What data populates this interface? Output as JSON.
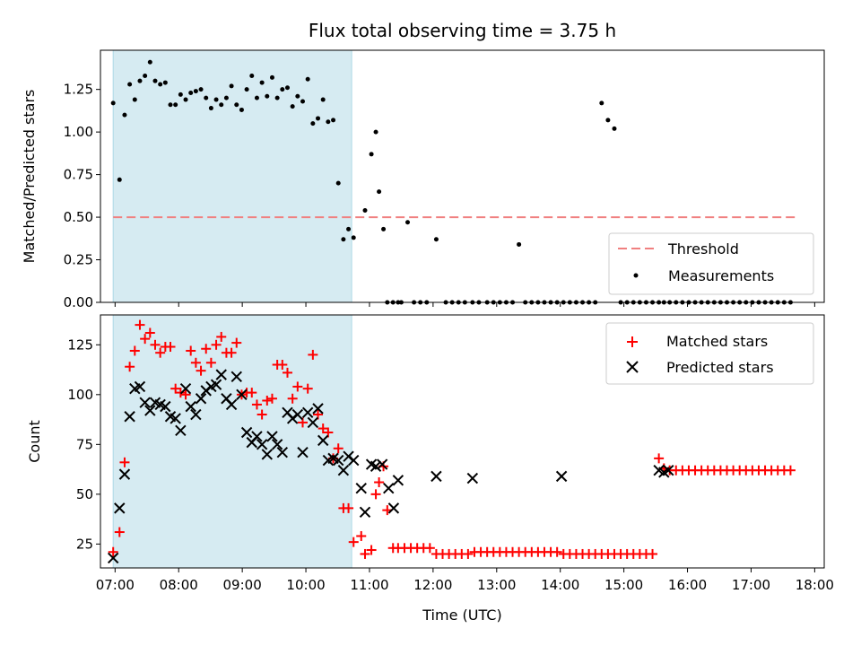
{
  "chart_data": [
    {
      "type": "scatter",
      "title": "Flux total observing time = 3.75 h",
      "ylabel": "Matched/Predicted stars",
      "xlabel": "",
      "xlim": [
        6.77,
        18.15
      ],
      "ylim": [
        0.0,
        1.48
      ],
      "yticks": [
        0.0,
        0.25,
        0.5,
        0.75,
        1.0,
        1.25
      ],
      "ytick_labels": [
        "0.00",
        "0.25",
        "0.50",
        "0.75",
        "1.00",
        "1.25"
      ],
      "shaded_span": [
        6.97,
        10.72
      ],
      "threshold": {
        "name": "Threshold",
        "value": 0.5,
        "x_range": [
          6.97,
          17.7
        ],
        "color": "#f08080"
      },
      "legend": [
        "Threshold",
        "Measurements"
      ],
      "legend_position": "lower-right",
      "series": [
        {
          "name": "Measurements",
          "color": "#000000",
          "x": [
            6.97,
            7.07,
            7.15,
            7.23,
            7.31,
            7.39,
            7.47,
            7.55,
            7.63,
            7.71,
            7.79,
            7.87,
            7.95,
            8.03,
            8.11,
            8.19,
            8.27,
            8.35,
            8.43,
            8.51,
            8.59,
            8.67,
            8.75,
            8.83,
            8.91,
            8.99,
            9.07,
            9.15,
            9.23,
            9.31,
            9.39,
            9.47,
            9.55,
            9.63,
            9.71,
            9.79,
            9.87,
            9.95,
            10.03,
            10.11,
            10.19,
            10.27,
            10.35,
            10.43,
            10.51,
            10.59,
            10.67,
            10.75,
            10.93,
            11.03,
            11.1,
            11.15,
            11.22,
            11.28,
            11.37,
            11.45,
            11.5,
            11.6,
            11.7,
            11.8,
            11.9,
            12.05,
            12.2,
            12.3,
            12.4,
            12.5,
            12.62,
            12.72,
            12.85,
            12.95,
            13.05,
            13.15,
            13.25,
            13.35,
            13.45,
            13.55,
            13.65,
            13.75,
            13.85,
            13.95,
            14.05,
            14.15,
            14.25,
            14.35,
            14.45,
            14.55,
            14.65,
            14.75,
            14.85,
            14.95,
            15.05,
            15.15,
            15.25,
            15.35,
            15.45,
            15.55,
            15.63,
            15.72,
            15.82,
            15.92,
            16.02,
            16.12,
            16.22,
            16.32,
            16.42,
            16.52,
            16.62,
            16.72,
            16.82,
            16.92,
            17.02,
            17.12,
            17.22,
            17.32,
            17.42,
            17.52,
            17.62
          ],
          "y": [
            1.17,
            0.72,
            1.1,
            1.28,
            1.19,
            1.3,
            1.33,
            1.41,
            1.3,
            1.28,
            1.29,
            1.16,
            1.16,
            1.22,
            1.19,
            1.23,
            1.24,
            1.25,
            1.2,
            1.14,
            1.19,
            1.16,
            1.2,
            1.27,
            1.16,
            1.13,
            1.25,
            1.33,
            1.2,
            1.29,
            1.21,
            1.32,
            1.2,
            1.25,
            1.26,
            1.15,
            1.21,
            1.18,
            1.31,
            1.05,
            1.08,
            1.19,
            1.06,
            1.07,
            0.7,
            0.37,
            0.43,
            0.38,
            0.54,
            0.87,
            1.0,
            0.65,
            0.43,
            0.0,
            0.0,
            0.0,
            0.0,
            0.47,
            0.0,
            0.0,
            0.0,
            0.37,
            0.0,
            0.0,
            0.0,
            0.0,
            0.0,
            0.0,
            0.0,
            0.0,
            0.0,
            0.0,
            0.0,
            0.34,
            0.0,
            0.0,
            0.0,
            0.0,
            0.0,
            0.0,
            0.0,
            0.0,
            0.0,
            0.0,
            0.0,
            0.0,
            1.17,
            1.07,
            1.02,
            0.0,
            0.0,
            0.0,
            0.0,
            0.0,
            0.0,
            0.0,
            0.0,
            0.0,
            0.0,
            0.0,
            0.0,
            0.0,
            0.0,
            0.0,
            0.0,
            0.0,
            0.0,
            0.0,
            0.0,
            0.0,
            0.0,
            0.0,
            0.0,
            0.0,
            0.0,
            0.0,
            0.0
          ]
        }
      ]
    },
    {
      "type": "scatter",
      "title": "",
      "ylabel": "Count",
      "xlabel": "Time (UTC)",
      "xlim": [
        6.77,
        18.15
      ],
      "ylim": [
        13,
        140
      ],
      "yticks": [
        25,
        50,
        75,
        100,
        125
      ],
      "ytick_labels": [
        "25",
        "50",
        "75",
        "100",
        "125"
      ],
      "xticks": [
        7,
        8,
        9,
        10,
        11,
        12,
        13,
        14,
        15,
        16,
        17,
        18
      ],
      "xtick_labels": [
        "07:00",
        "08:00",
        "09:00",
        "10:00",
        "11:00",
        "12:00",
        "13:00",
        "14:00",
        "15:00",
        "16:00",
        "17:00",
        "18:00"
      ],
      "shaded_span": [
        6.97,
        10.72
      ],
      "legend": [
        "Matched stars",
        "Predicted stars"
      ],
      "legend_position": "upper-right",
      "series": [
        {
          "name": "Matched stars",
          "marker": "plus",
          "color": "#ff0000",
          "x": [
            6.97,
            7.07,
            7.15,
            7.23,
            7.31,
            7.39,
            7.47,
            7.55,
            7.63,
            7.71,
            7.79,
            7.87,
            7.95,
            8.03,
            8.11,
            8.19,
            8.27,
            8.35,
            8.43,
            8.51,
            8.59,
            8.67,
            8.75,
            8.83,
            8.91,
            8.99,
            9.07,
            9.15,
            9.23,
            9.31,
            9.39,
            9.47,
            9.55,
            9.63,
            9.71,
            9.79,
            9.87,
            9.95,
            10.03,
            10.11,
            10.19,
            10.27,
            10.35,
            10.43,
            10.51,
            10.59,
            10.67,
            10.75,
            10.87,
            10.93,
            11.03,
            11.1,
            11.15,
            11.22,
            11.28,
            11.37,
            11.45,
            11.55,
            11.65,
            11.75,
            11.85,
            11.95,
            12.05,
            12.15,
            12.25,
            12.35,
            12.45,
            12.55,
            12.65,
            12.75,
            12.85,
            12.95,
            13.05,
            13.15,
            13.25,
            13.35,
            13.45,
            13.55,
            13.65,
            13.75,
            13.85,
            13.95,
            14.05,
            14.15,
            14.25,
            14.35,
            14.45,
            14.55,
            14.65,
            14.75,
            14.85,
            14.95,
            15.05,
            15.15,
            15.25,
            15.35,
            15.45,
            15.55,
            15.63,
            15.72,
            15.82,
            15.92,
            16.02,
            16.12,
            16.22,
            16.32,
            16.42,
            16.52,
            16.62,
            16.72,
            16.82,
            16.92,
            17.02,
            17.12,
            17.22,
            17.32,
            17.42,
            17.52,
            17.62
          ],
          "y": [
            21,
            31,
            66,
            114,
            122,
            135,
            128,
            131,
            125,
            121,
            124,
            124,
            103,
            101,
            100,
            122,
            116,
            112,
            123,
            116,
            125,
            129,
            121,
            121,
            126,
            100,
            101,
            101,
            95,
            90,
            97,
            98,
            115,
            115,
            111,
            98,
            104,
            86,
            103,
            120,
            90,
            83,
            81,
            68,
            73,
            43,
            43,
            26,
            29,
            20,
            22,
            50,
            56,
            64,
            42,
            23,
            23,
            23,
            23,
            23,
            23,
            23,
            20,
            20,
            20,
            20,
            20,
            20,
            21,
            21,
            21,
            21,
            21,
            21,
            21,
            21,
            21,
            21,
            21,
            21,
            21,
            21,
            20,
            20,
            20,
            20,
            20,
            20,
            20,
            20,
            20,
            20,
            20,
            20,
            20,
            20,
            20,
            68,
            63,
            62,
            62,
            62,
            62,
            62,
            62,
            62,
            62,
            62,
            62,
            62,
            62,
            62,
            62,
            62,
            62,
            62,
            62,
            62,
            62
          ]
        },
        {
          "name": "Predicted stars",
          "marker": "x",
          "color": "#000000",
          "x": [
            6.97,
            7.07,
            7.15,
            7.23,
            7.31,
            7.39,
            7.47,
            7.55,
            7.63,
            7.71,
            7.79,
            7.87,
            7.95,
            8.03,
            8.11,
            8.19,
            8.27,
            8.35,
            8.43,
            8.51,
            8.59,
            8.67,
            8.75,
            8.83,
            8.91,
            8.99,
            9.07,
            9.15,
            9.23,
            9.31,
            9.39,
            9.47,
            9.55,
            9.63,
            9.71,
            9.79,
            9.87,
            9.95,
            10.03,
            10.11,
            10.19,
            10.27,
            10.35,
            10.43,
            10.51,
            10.59,
            10.67,
            10.75,
            10.87,
            10.93,
            11.03,
            11.1,
            11.2,
            11.3,
            11.38,
            11.45,
            12.05,
            12.62,
            14.02,
            15.55,
            15.63,
            15.7
          ],
          "y": [
            18,
            43,
            60,
            89,
            103,
            104,
            96,
            92,
            96,
            95,
            94,
            89,
            88,
            82,
            103,
            94,
            90,
            98,
            102,
            104,
            105,
            110,
            98,
            95,
            109,
            100,
            81,
            76,
            79,
            75,
            70,
            79,
            75,
            71,
            91,
            88,
            90,
            71,
            91,
            86,
            93,
            77,
            67,
            68,
            67,
            62,
            69,
            67,
            53,
            41,
            65,
            64,
            65,
            53,
            43,
            57,
            59,
            58,
            59,
            62,
            61,
            62
          ]
        }
      ]
    }
  ]
}
